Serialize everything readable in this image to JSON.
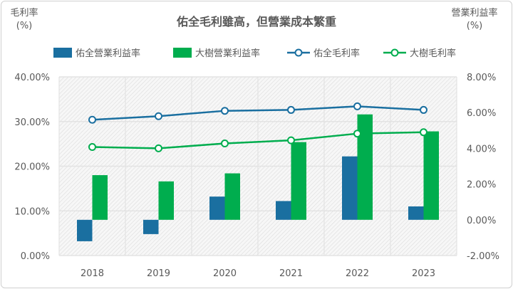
{
  "chart_data": {
    "type": "bar+line",
    "title": "佑全毛利雖高，但營業成本繁重",
    "ylabel_left": [
      "毛利率",
      "(%)"
    ],
    "ylabel_right": [
      "營業利益率",
      "(%)"
    ],
    "categories": [
      "2018",
      "2019",
      "2020",
      "2021",
      "2022",
      "2023"
    ],
    "left_axis": {
      "min": 0,
      "max": 40,
      "ticks": [
        "0.00%",
        "10.00%",
        "20.00%",
        "30.00%",
        "40.00%"
      ]
    },
    "right_axis": {
      "min": -2,
      "max": 8,
      "ticks": [
        "-2.00%",
        "0.00%",
        "2.00%",
        "4.00%",
        "6.00%",
        "8.00%"
      ]
    },
    "legend_position": "top",
    "grid": true,
    "series": [
      {
        "name": "佑全營業利益率",
        "type": "bar",
        "axis": "right",
        "color": "#1a6fa0",
        "values": [
          -1.2,
          -0.8,
          1.3,
          1.05,
          3.55,
          0.75
        ]
      },
      {
        "name": "大樹營業利益率",
        "type": "bar",
        "axis": "right",
        "color": "#00ad4e",
        "values": [
          2.5,
          2.15,
          2.6,
          4.35,
          5.9,
          4.95
        ]
      },
      {
        "name": "佑全毛利率",
        "type": "line",
        "axis": "left",
        "color": "#1a6fa0",
        "values": [
          30.4,
          31.2,
          32.4,
          32.6,
          33.4,
          32.6
        ]
      },
      {
        "name": "大樹毛利率",
        "type": "line",
        "axis": "left",
        "color": "#00ad4e",
        "values": [
          24.3,
          24.0,
          25.1,
          25.8,
          27.3,
          27.6
        ]
      }
    ]
  }
}
